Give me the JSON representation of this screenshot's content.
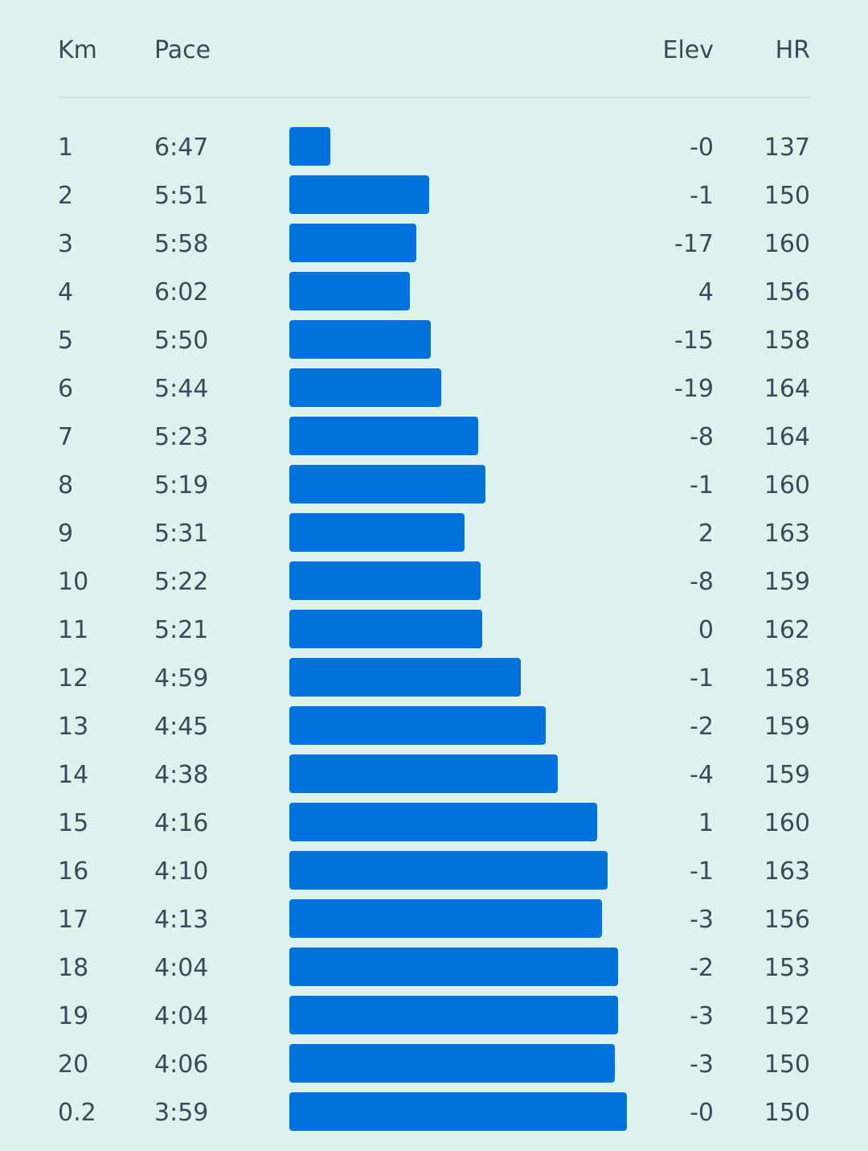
{
  "header": {
    "km": "Km",
    "pace": "Pace",
    "elev": "Elev",
    "hr": "HR"
  },
  "colors": {
    "background": "#ddf2ec",
    "bar": "#0072dc",
    "text": "#3a4a5a"
  },
  "splits": [
    {
      "km": "1",
      "pace": "6:47",
      "elev": "-0",
      "hr": "137"
    },
    {
      "km": "2",
      "pace": "5:51",
      "elev": "-1",
      "hr": "150"
    },
    {
      "km": "3",
      "pace": "5:58",
      "elev": "-17",
      "hr": "160"
    },
    {
      "km": "4",
      "pace": "6:02",
      "elev": "4",
      "hr": "156"
    },
    {
      "km": "5",
      "pace": "5:50",
      "elev": "-15",
      "hr": "158"
    },
    {
      "km": "6",
      "pace": "5:44",
      "elev": "-19",
      "hr": "164"
    },
    {
      "km": "7",
      "pace": "5:23",
      "elev": "-8",
      "hr": "164"
    },
    {
      "km": "8",
      "pace": "5:19",
      "elev": "-1",
      "hr": "160"
    },
    {
      "km": "9",
      "pace": "5:31",
      "elev": "2",
      "hr": "163"
    },
    {
      "km": "10",
      "pace": "5:22",
      "elev": "-8",
      "hr": "159"
    },
    {
      "km": "11",
      "pace": "5:21",
      "elev": "0",
      "hr": "162"
    },
    {
      "km": "12",
      "pace": "4:59",
      "elev": "-1",
      "hr": "158"
    },
    {
      "km": "13",
      "pace": "4:45",
      "elev": "-2",
      "hr": "159"
    },
    {
      "km": "14",
      "pace": "4:38",
      "elev": "-4",
      "hr": "159"
    },
    {
      "km": "15",
      "pace": "4:16",
      "elev": "1",
      "hr": "160"
    },
    {
      "km": "16",
      "pace": "4:10",
      "elev": "-1",
      "hr": "163"
    },
    {
      "km": "17",
      "pace": "4:13",
      "elev": "-3",
      "hr": "156"
    },
    {
      "km": "18",
      "pace": "4:04",
      "elev": "-2",
      "hr": "153"
    },
    {
      "km": "19",
      "pace": "4:04",
      "elev": "-3",
      "hr": "152"
    },
    {
      "km": "20",
      "pace": "4:06",
      "elev": "-3",
      "hr": "150"
    },
    {
      "km": "0.2",
      "pace": "3:59",
      "elev": "-0",
      "hr": "150"
    }
  ]
}
